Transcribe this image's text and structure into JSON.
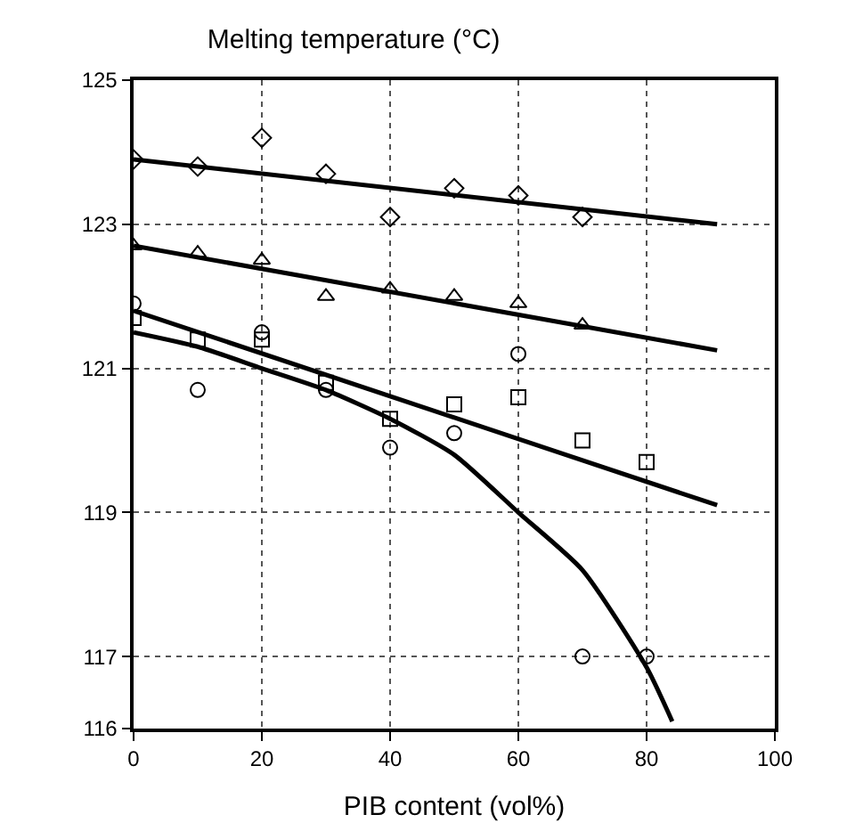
{
  "chart_data": {
    "type": "scatter",
    "title": "Melting temperature (°C)",
    "xlabel": "PIB content (vol%)",
    "xlim": [
      0,
      100
    ],
    "xticks": [
      0,
      20,
      40,
      60,
      80,
      100
    ],
    "ylim": [
      116,
      125
    ],
    "yticks": [
      116,
      117,
      119,
      121,
      123,
      125
    ],
    "grid": true,
    "series": [
      {
        "marker": "diamond",
        "color": "#000000",
        "x": [
          0,
          10,
          20,
          30,
          40,
          50,
          60,
          70
        ],
        "values": [
          123.9,
          123.8,
          124.2,
          123.7,
          123.1,
          123.5,
          123.4,
          123.1
        ]
      },
      {
        "marker": "triangle",
        "color": "#000000",
        "x": [
          0,
          10,
          20,
          30,
          40,
          50,
          60,
          70
        ],
        "values": [
          122.7,
          122.6,
          122.5,
          122.0,
          122.1,
          122.0,
          121.9,
          121.6
        ]
      },
      {
        "marker": "square",
        "color": "#000000",
        "x": [
          0,
          10,
          20,
          30,
          40,
          50,
          60,
          70,
          80
        ],
        "values": [
          121.7,
          121.4,
          121.4,
          120.8,
          120.3,
          120.5,
          120.6,
          120.0,
          119.7
        ]
      },
      {
        "marker": "circle",
        "color": "#000000",
        "x": [
          0,
          10,
          20,
          30,
          40,
          50,
          60,
          70,
          80
        ],
        "values": [
          121.9,
          120.7,
          121.5,
          120.7,
          119.9,
          120.1,
          121.2,
          117.0,
          117.0
        ]
      },
      {
        "type": "line",
        "marker": "none",
        "color": "#000000",
        "x": [
          0,
          91
        ],
        "values": [
          123.9,
          123.0
        ]
      },
      {
        "type": "line",
        "marker": "none",
        "color": "#000000",
        "x": [
          0,
          91
        ],
        "values": [
          122.7,
          121.25
        ]
      },
      {
        "type": "line",
        "marker": "none",
        "color": "#000000",
        "x": [
          0,
          91
        ],
        "values": [
          121.8,
          119.1
        ]
      },
      {
        "type": "line",
        "marker": "none",
        "color": "#000000",
        "x": [
          0,
          10,
          20,
          30,
          40,
          50,
          60,
          70,
          80,
          84
        ],
        "values": [
          121.5,
          121.3,
          121.0,
          120.7,
          120.3,
          119.8,
          119.0,
          118.2,
          116.85,
          116.1
        ]
      }
    ]
  }
}
